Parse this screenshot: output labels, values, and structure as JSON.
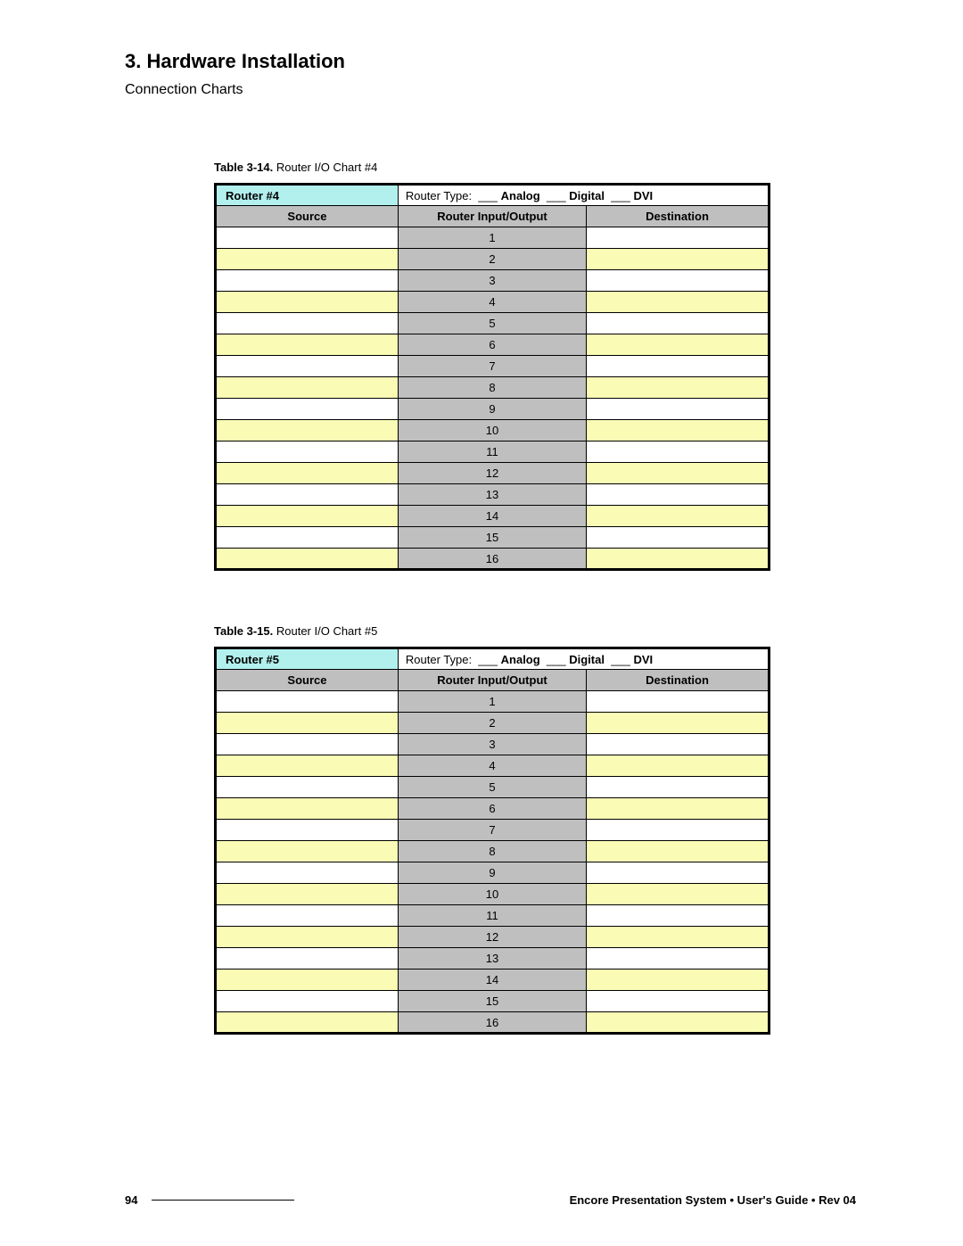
{
  "heading": "3.  Hardware Installation",
  "subheading": "Connection Charts",
  "footer": {
    "page_number": "94",
    "text": "Encore Presentation System  •  User's Guide  •  Rev 04"
  },
  "tables": [
    {
      "caption_label": "Table 3-14.",
      "caption_text": "Router I/O Chart #4",
      "router_label": "Router #4",
      "type_prefix": "Router Type:  ___ ",
      "type_opt1": "Analog",
      "type_sep1": "  ___ ",
      "type_opt2": "Digital",
      "type_sep2": "  ___ ",
      "type_opt3": "DVI",
      "columns": [
        "Source",
        "Router Input/Output",
        "Destination"
      ],
      "rows": [
        "1",
        "2",
        "3",
        "4",
        "5",
        "6",
        "7",
        "8",
        "9",
        "10",
        "11",
        "12",
        "13",
        "14",
        "15",
        "16"
      ],
      "colors": {
        "router_header_bg": "#b2f0ee",
        "column_header_bg": "#bfbfbf",
        "mid_col_bg": "#bfbfbf",
        "odd_row_bg": "#ffffff",
        "even_row_bg": "#fafcb6",
        "border": "#000000"
      }
    },
    {
      "caption_label": "Table 3-15.",
      "caption_text": "Router I/O Chart #5",
      "router_label": "Router #5",
      "type_prefix": "Router Type:  ___ ",
      "type_opt1": "Analog",
      "type_sep1": "  ___ ",
      "type_opt2": "Digital",
      "type_sep2": "  ___ ",
      "type_opt3": "DVI",
      "columns": [
        "Source",
        "Router Input/Output",
        "Destination"
      ],
      "rows": [
        "1",
        "2",
        "3",
        "4",
        "5",
        "6",
        "7",
        "8",
        "9",
        "10",
        "11",
        "12",
        "13",
        "14",
        "15",
        "16"
      ],
      "colors": {
        "router_header_bg": "#b2f0ee",
        "column_header_bg": "#bfbfbf",
        "mid_col_bg": "#bfbfbf",
        "odd_row_bg": "#ffffff",
        "even_row_bg": "#fafcb6",
        "border": "#000000"
      }
    }
  ]
}
